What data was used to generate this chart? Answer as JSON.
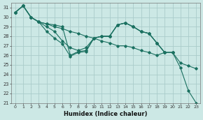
{
  "xlabel": "Humidex (Indice chaleur)",
  "background_color": "#cce8e5",
  "grid_color": "#aaccca",
  "line_color": "#1a7060",
  "xlim": [
    -0.5,
    23.5
  ],
  "ylim": [
    21,
    31.5
  ],
  "yticks": [
    21,
    22,
    23,
    24,
    25,
    26,
    27,
    28,
    29,
    30,
    31
  ],
  "xticks": [
    0,
    1,
    2,
    3,
    4,
    5,
    6,
    7,
    8,
    9,
    10,
    11,
    12,
    13,
    14,
    15,
    16,
    17,
    18,
    19,
    20,
    21,
    22,
    23
  ],
  "s1_x": [
    0,
    1,
    2,
    3,
    4,
    5,
    6,
    7,
    8,
    9,
    10,
    11,
    12,
    13,
    14,
    15,
    16,
    17,
    18,
    19,
    20,
    21,
    22,
    23
  ],
  "s1_y": [
    30.5,
    31.2,
    30.0,
    29.5,
    29.3,
    29.2,
    29.0,
    26.0,
    26.4,
    26.5,
    27.8,
    28.0,
    28.0,
    29.2,
    29.4,
    29.0,
    28.5,
    28.3,
    27.3,
    26.3,
    26.3,
    24.7,
    22.3,
    21.0
  ],
  "s2_x": [
    0,
    1,
    2,
    3,
    4,
    5,
    6,
    7,
    8,
    9,
    10,
    11,
    12,
    13,
    14,
    15,
    16,
    17,
    18,
    19,
    20
  ],
  "s2_y": [
    30.5,
    31.2,
    30.0,
    29.5,
    29.0,
    28.5,
    27.5,
    26.8,
    26.5,
    26.8,
    27.8,
    28.0,
    28.0,
    29.2,
    29.4,
    29.0,
    28.5,
    28.3,
    27.3,
    26.3,
    26.3
  ],
  "s3_x": [
    0,
    1,
    2,
    3,
    4,
    5,
    6,
    7,
    8,
    9,
    10,
    11,
    12,
    13,
    14,
    15,
    16,
    17,
    18,
    19
  ],
  "s3_y": [
    30.5,
    31.2,
    30.0,
    29.5,
    28.5,
    27.8,
    27.2,
    25.9,
    26.3,
    26.4,
    27.8,
    28.0,
    28.0,
    29.2,
    29.4,
    29.0,
    28.5,
    28.3,
    27.3,
    26.3
  ],
  "s4_x": [
    0,
    1,
    2,
    3,
    4,
    5,
    6,
    7,
    8,
    9,
    10,
    11,
    12,
    13,
    14,
    15,
    16,
    17,
    18,
    19,
    20,
    21,
    22,
    23
  ],
  "s4_y": [
    30.5,
    31.2,
    30.0,
    29.5,
    29.3,
    29.0,
    28.8,
    28.5,
    28.3,
    28.0,
    27.8,
    27.5,
    27.3,
    27.0,
    27.0,
    26.8,
    26.5,
    26.3,
    26.0,
    26.3,
    26.3,
    25.2,
    24.9,
    24.6
  ]
}
